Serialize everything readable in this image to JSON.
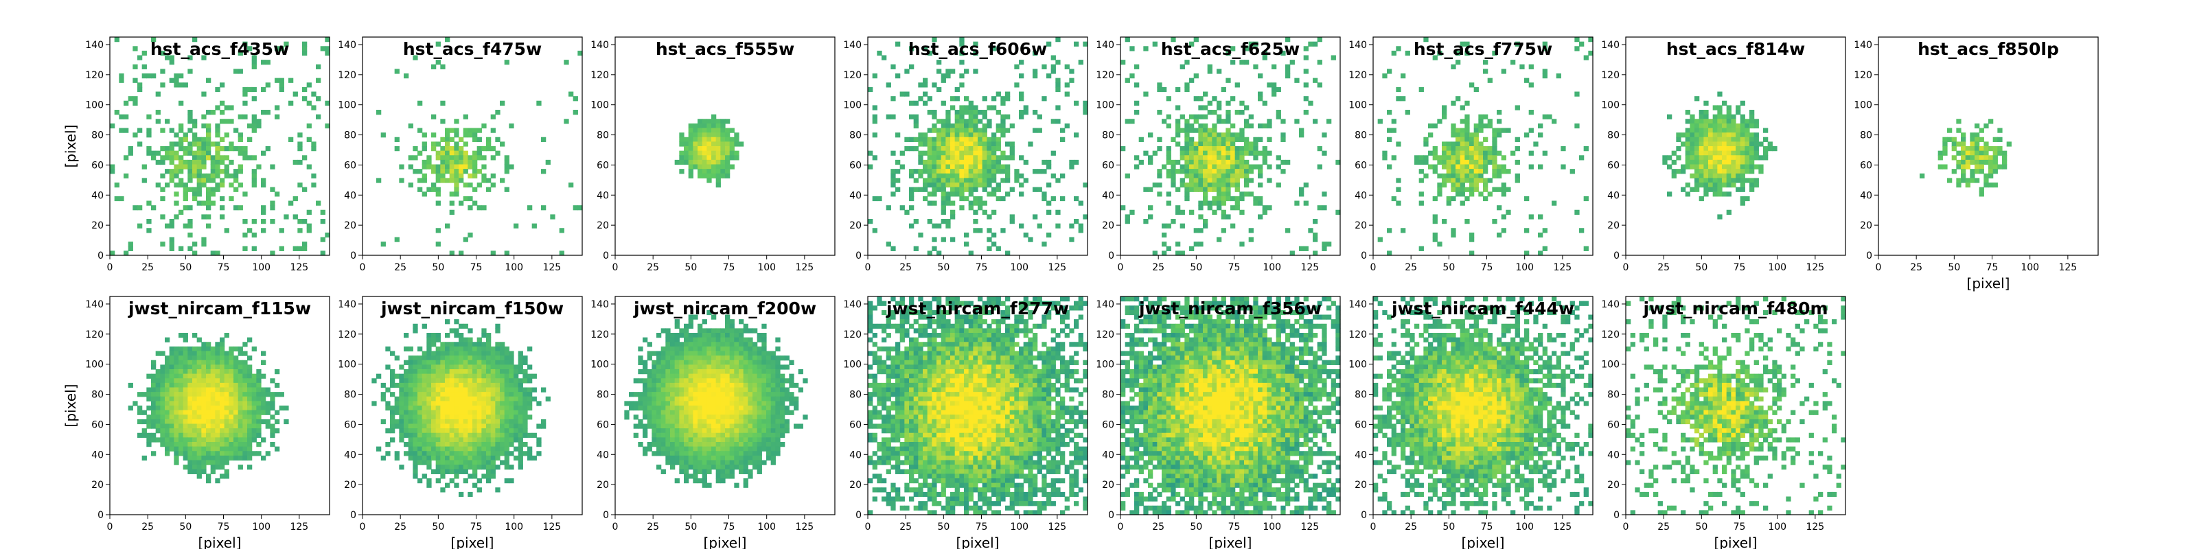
{
  "figure": {
    "colors": {
      "low": "#21918c",
      "mid": "#5ec962",
      "high": "#fde725",
      "frame": "#000000",
      "background": "#ffffff"
    }
  },
  "chart_data": [
    {
      "type": "heatmap",
      "title": "hst_acs_f435w",
      "xlabel": "",
      "ylabel": "[pixel]",
      "xlim": [
        0,
        145
      ],
      "ylim": [
        0,
        145
      ],
      "xticks": [
        "0",
        "25",
        "50",
        "75",
        "100",
        "125"
      ],
      "yticks": [
        "0",
        "20",
        "40",
        "60",
        "80",
        "100",
        "120",
        "140"
      ],
      "source": {
        "cx": 60,
        "cy": 62,
        "sigma": 18,
        "peak": 0.55,
        "noise": 0.5,
        "threshold": 0.5
      }
    },
    {
      "type": "heatmap",
      "title": "hst_acs_f475w",
      "xlabel": "",
      "ylabel": "",
      "xlim": [
        0,
        145
      ],
      "ylim": [
        0,
        145
      ],
      "xticks": [
        "0",
        "25",
        "50",
        "75",
        "100",
        "125"
      ],
      "yticks": [
        "0",
        "20",
        "40",
        "60",
        "80",
        "100",
        "120",
        "140"
      ],
      "source": {
        "cx": 62,
        "cy": 62,
        "sigma": 14,
        "peak": 0.75,
        "noise": 0.45,
        "threshold": 0.55
      }
    },
    {
      "type": "heatmap",
      "title": "hst_acs_f555w",
      "xlabel": "",
      "ylabel": "",
      "xlim": [
        0,
        145
      ],
      "ylim": [
        0,
        145
      ],
      "xticks": [
        "0",
        "25",
        "50",
        "75",
        "100",
        "125"
      ],
      "yticks": [
        "0",
        "20",
        "40",
        "60",
        "80",
        "100",
        "120",
        "140"
      ],
      "source": {
        "cx": 62,
        "cy": 70,
        "sigma": 13,
        "peak": 0.95,
        "noise": 0.2,
        "threshold": 0.55
      }
    },
    {
      "type": "heatmap",
      "title": "hst_acs_f606w",
      "xlabel": "",
      "ylabel": "",
      "xlim": [
        0,
        145
      ],
      "ylim": [
        0,
        145
      ],
      "xticks": [
        "0",
        "25",
        "50",
        "75",
        "100",
        "125"
      ],
      "yticks": [
        "0",
        "20",
        "40",
        "60",
        "80",
        "100",
        "120",
        "140"
      ],
      "source": {
        "cx": 62,
        "cy": 65,
        "sigma": 17,
        "peak": 1.0,
        "noise": 0.4,
        "threshold": 0.4
      }
    },
    {
      "type": "heatmap",
      "title": "hst_acs_f625w",
      "xlabel": "",
      "ylabel": "",
      "xlim": [
        0,
        145
      ],
      "ylim": [
        0,
        145
      ],
      "xticks": [
        "0",
        "25",
        "50",
        "75",
        "100",
        "125"
      ],
      "yticks": [
        "0",
        "20",
        "40",
        "60",
        "80",
        "100",
        "120",
        "140"
      ],
      "source": {
        "cx": 62,
        "cy": 62,
        "sigma": 17,
        "peak": 0.9,
        "noise": 0.45,
        "threshold": 0.45
      }
    },
    {
      "type": "heatmap",
      "title": "hst_acs_f775w",
      "xlabel": "",
      "ylabel": "",
      "xlim": [
        0,
        145
      ],
      "ylim": [
        0,
        145
      ],
      "xticks": [
        "0",
        "25",
        "50",
        "75",
        "100",
        "125"
      ],
      "yticks": [
        "0",
        "20",
        "40",
        "60",
        "80",
        "100",
        "120",
        "140"
      ],
      "source": {
        "cx": 62,
        "cy": 62,
        "sigma": 15,
        "peak": 0.85,
        "noise": 0.45,
        "threshold": 0.5
      }
    },
    {
      "type": "heatmap",
      "title": "hst_acs_f814w",
      "xlabel": "",
      "ylabel": "",
      "xlim": [
        0,
        145
      ],
      "ylim": [
        0,
        145
      ],
      "xticks": [
        "0",
        "25",
        "50",
        "75",
        "100",
        "125"
      ],
      "yticks": [
        "0",
        "20",
        "40",
        "60",
        "80",
        "100",
        "120",
        "140"
      ],
      "source": {
        "cx": 62,
        "cy": 68,
        "sigma": 17,
        "peak": 1.0,
        "noise": 0.3,
        "threshold": 0.45
      }
    },
    {
      "type": "heatmap",
      "title": "hst_acs_f850lp",
      "xlabel": "[pixel]",
      "ylabel": "",
      "xlim": [
        0,
        145
      ],
      "ylim": [
        0,
        145
      ],
      "xticks": [
        "0",
        "25",
        "50",
        "75",
        "100",
        "125"
      ],
      "yticks": [
        "0",
        "20",
        "40",
        "60",
        "80",
        "100",
        "120",
        "140"
      ],
      "source": {
        "cx": 62,
        "cy": 65,
        "sigma": 13,
        "peak": 0.7,
        "noise": 0.45,
        "threshold": 0.6
      }
    },
    {
      "type": "heatmap",
      "title": "jwst_nircam_f115w",
      "xlabel": "[pixel]",
      "ylabel": "[pixel]",
      "xlim": [
        0,
        145
      ],
      "ylim": [
        0,
        145
      ],
      "xticks": [
        "0",
        "25",
        "50",
        "75",
        "100",
        "125"
      ],
      "yticks": [
        "0",
        "20",
        "40",
        "60",
        "80",
        "100",
        "120",
        "140"
      ],
      "source": {
        "cx": 65,
        "cy": 72,
        "sigma": 24,
        "peak": 1.1,
        "noise": 0.2,
        "threshold": 0.4
      }
    },
    {
      "type": "heatmap",
      "title": "jwst_nircam_f150w",
      "xlabel": "[pixel]",
      "ylabel": "",
      "xlim": [
        0,
        145
      ],
      "ylim": [
        0,
        145
      ],
      "xticks": [
        "0",
        "25",
        "50",
        "75",
        "100",
        "125"
      ],
      "yticks": [
        "0",
        "20",
        "40",
        "60",
        "80",
        "100",
        "120",
        "140"
      ],
      "source": {
        "cx": 65,
        "cy": 72,
        "sigma": 26,
        "peak": 1.1,
        "noise": 0.2,
        "threshold": 0.35
      }
    },
    {
      "type": "heatmap",
      "title": "jwst_nircam_f200w",
      "xlabel": "[pixel]",
      "ylabel": "",
      "xlim": [
        0,
        145
      ],
      "ylim": [
        0,
        145
      ],
      "xticks": [
        "0",
        "25",
        "50",
        "75",
        "100",
        "125"
      ],
      "yticks": [
        "0",
        "20",
        "40",
        "60",
        "80",
        "100",
        "120",
        "140"
      ],
      "source": {
        "cx": 65,
        "cy": 75,
        "sigma": 28,
        "peak": 1.1,
        "noise": 0.15,
        "threshold": 0.35
      }
    },
    {
      "type": "heatmap",
      "title": "jwst_nircam_f277w",
      "xlabel": "[pixel]",
      "ylabel": "",
      "xlim": [
        0,
        145
      ],
      "ylim": [
        0,
        145
      ],
      "xticks": [
        "0",
        "25",
        "50",
        "75",
        "100",
        "125"
      ],
      "yticks": [
        "0",
        "20",
        "40",
        "60",
        "80",
        "100",
        "120",
        "140"
      ],
      "source": {
        "cx": 68,
        "cy": 70,
        "sigma": 34,
        "peak": 1.1,
        "noise": 0.4,
        "threshold": 0.2
      }
    },
    {
      "type": "heatmap",
      "title": "jwst_nircam_f356w",
      "xlabel": "[pixel]",
      "ylabel": "",
      "xlim": [
        0,
        145
      ],
      "ylim": [
        0,
        145
      ],
      "xticks": [
        "0",
        "25",
        "50",
        "75",
        "100",
        "125"
      ],
      "yticks": [
        "0",
        "20",
        "40",
        "60",
        "80",
        "100",
        "120",
        "140"
      ],
      "source": {
        "cx": 68,
        "cy": 70,
        "sigma": 36,
        "peak": 1.1,
        "noise": 0.45,
        "threshold": 0.15
      }
    },
    {
      "type": "heatmap",
      "title": "jwst_nircam_f444w",
      "xlabel": "[pixel]",
      "ylabel": "",
      "xlim": [
        0,
        145
      ],
      "ylim": [
        0,
        145
      ],
      "xticks": [
        "0",
        "25",
        "50",
        "75",
        "100",
        "125"
      ],
      "yticks": [
        "0",
        "20",
        "40",
        "60",
        "80",
        "100",
        "120",
        "140"
      ],
      "source": {
        "cx": 65,
        "cy": 70,
        "sigma": 30,
        "peak": 1.1,
        "noise": 0.4,
        "threshold": 0.3
      }
    },
    {
      "type": "heatmap",
      "title": "jwst_nircam_f480m",
      "xlabel": "[pixel]",
      "ylabel": "",
      "xlim": [
        0,
        145
      ],
      "ylim": [
        0,
        145
      ],
      "xticks": [
        "0",
        "25",
        "50",
        "75",
        "100",
        "125"
      ],
      "yticks": [
        "0",
        "20",
        "40",
        "60",
        "80",
        "100",
        "120",
        "140"
      ],
      "source": {
        "cx": 65,
        "cy": 68,
        "sigma": 20,
        "peak": 0.9,
        "noise": 0.55,
        "threshold": 0.5
      }
    }
  ]
}
